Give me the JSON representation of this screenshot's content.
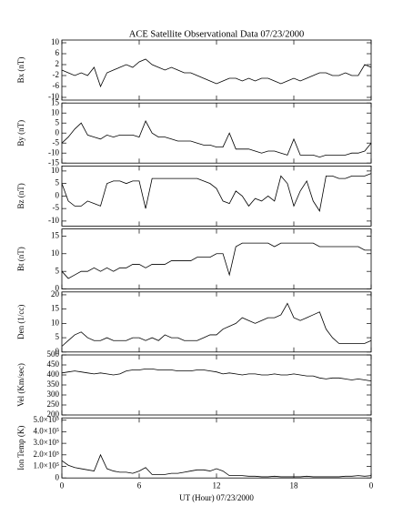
{
  "chart_data": {
    "type": "line",
    "title": "ACE Satellite Observational Data   07/23/2000",
    "xlabel": "UT (Hour)   07/23/2000",
    "xlim": [
      0,
      24
    ],
    "xticks": [
      0,
      6,
      12,
      18,
      {
        "value": 24,
        "label": "0"
      }
    ],
    "x": [
      0,
      0.5,
      1,
      1.5,
      2,
      2.5,
      3,
      3.5,
      4,
      4.5,
      5,
      5.5,
      6,
      6.5,
      7,
      7.5,
      8,
      8.5,
      9,
      9.5,
      10,
      10.5,
      11,
      11.5,
      12,
      12.5,
      13,
      13.5,
      14,
      14.5,
      15,
      15.5,
      16,
      16.5,
      17,
      17.5,
      18,
      18.5,
      19,
      19.5,
      20,
      20.5,
      21,
      21.5,
      22,
      22.5,
      23,
      23.5,
      24
    ],
    "color": "#000000",
    "panels": [
      {
        "ylabel": "Bx (nT)",
        "ylim": [
          -11,
          11
        ],
        "yticks": [
          -10,
          -6,
          -2,
          2,
          6,
          10
        ],
        "values": [
          0,
          -1,
          -2,
          -1,
          -2,
          1,
          -6,
          -1,
          0,
          1,
          2,
          1,
          3,
          4,
          2,
          1,
          0,
          1,
          0,
          -1,
          -1,
          -2,
          -3,
          -4,
          -5,
          -4,
          -3,
          -3,
          -4,
          -3,
          -4,
          -3,
          -3,
          -4,
          -5,
          -4,
          -3,
          -4,
          -3,
          -2,
          -1,
          -1,
          -2,
          -2,
          -1,
          -2,
          -2,
          2,
          1
        ]
      },
      {
        "ylabel": "By (nT)",
        "ylim": [
          -15,
          15
        ],
        "yticks": [
          -15,
          -10,
          -5,
          0,
          5,
          10,
          15
        ],
        "values": [
          -5,
          -2,
          2,
          5,
          -1,
          -2,
          -3,
          -1,
          -2,
          -1,
          -1,
          -1,
          -2,
          6,
          0,
          -2,
          -2,
          -3,
          -4,
          -4,
          -4,
          -5,
          -6,
          -6,
          -7,
          -7,
          0,
          -8,
          -8,
          -8,
          -9,
          -10,
          -9,
          -9,
          -10,
          -11,
          -3,
          -11,
          -11,
          -11,
          -12,
          -11,
          -11,
          -11,
          -11,
          -10,
          -10,
          -9,
          -5
        ]
      },
      {
        "ylabel": "Bz (nT)",
        "ylim": [
          -12,
          12
        ],
        "yticks": [
          -10,
          -5,
          0,
          5,
          10
        ],
        "values": [
          5,
          -2,
          -4,
          -4,
          -2,
          -3,
          -4,
          5,
          6,
          6,
          5,
          6,
          6,
          -5,
          7,
          7,
          7,
          7,
          7,
          7,
          7,
          7,
          6,
          5,
          3,
          -2,
          -3,
          2,
          0,
          -4,
          -1,
          -2,
          0,
          -2,
          8,
          5,
          -4,
          2,
          6,
          -2,
          -6,
          8,
          8,
          7,
          7,
          8,
          8,
          8,
          9
        ]
      },
      {
        "ylabel": "Bt (nT)",
        "ylim": [
          0,
          17
        ],
        "yticks": [
          0,
          5,
          10,
          15
        ],
        "values": [
          5,
          3,
          4,
          5,
          5,
          6,
          5,
          6,
          5,
          6,
          6,
          7,
          7,
          6,
          7,
          7,
          7,
          8,
          8,
          8,
          8,
          9,
          9,
          9,
          10,
          10,
          4,
          12,
          13,
          13,
          13,
          13,
          13,
          12,
          13,
          13,
          13,
          13,
          13,
          13,
          12,
          12,
          12,
          12,
          12,
          12,
          12,
          11,
          11
        ]
      },
      {
        "ylabel": "Den (1/cc)",
        "ylim": [
          0,
          21
        ],
        "yticks": [
          0,
          5,
          10,
          15,
          20
        ],
        "values": [
          2,
          4,
          6,
          7,
          5,
          4,
          4,
          5,
          4,
          4,
          4,
          5,
          5,
          4,
          5,
          4,
          6,
          5,
          5,
          4,
          4,
          4,
          5,
          6,
          6,
          8,
          9,
          10,
          12,
          11,
          10,
          11,
          12,
          12,
          13,
          17,
          12,
          11,
          12,
          13,
          14,
          8,
          5,
          3,
          3,
          3,
          3,
          3,
          4
        ]
      },
      {
        "ylabel": "Vel (Km/sec)",
        "ylim": [
          200,
          500
        ],
        "yticks": [
          200,
          250,
          300,
          350,
          400,
          450,
          500
        ],
        "values": [
          410,
          415,
          420,
          415,
          410,
          405,
          410,
          405,
          400,
          405,
          420,
          425,
          425,
          430,
          430,
          425,
          425,
          425,
          420,
          420,
          420,
          425,
          425,
          420,
          415,
          405,
          410,
          405,
          400,
          405,
          405,
          400,
          400,
          405,
          400,
          400,
          405,
          400,
          395,
          395,
          385,
          380,
          385,
          385,
          380,
          375,
          380,
          375,
          370
        ]
      },
      {
        "ylabel": "Ion Temp (K)",
        "ylim": [
          0,
          520000
        ],
        "yticks": [
          0,
          {
            "value": 100000,
            "label": "1.0×10⁵"
          },
          {
            "value": 200000,
            "label": "2.0×10⁵"
          },
          {
            "value": 300000,
            "label": "3.0×10⁵"
          },
          {
            "value": 400000,
            "label": "4.0×10⁵"
          },
          {
            "value": 500000,
            "label": "5.0×10⁵"
          }
        ],
        "values": [
          150000,
          110000,
          90000,
          80000,
          70000,
          60000,
          200000,
          80000,
          60000,
          50000,
          50000,
          40000,
          60000,
          90000,
          30000,
          30000,
          30000,
          40000,
          40000,
          50000,
          60000,
          70000,
          70000,
          60000,
          80000,
          60000,
          20000,
          20000,
          20000,
          15000,
          15000,
          10000,
          10000,
          15000,
          10000,
          10000,
          10000,
          10000,
          15000,
          10000,
          10000,
          10000,
          10000,
          10000,
          15000,
          15000,
          20000,
          15000,
          20000
        ]
      }
    ]
  }
}
